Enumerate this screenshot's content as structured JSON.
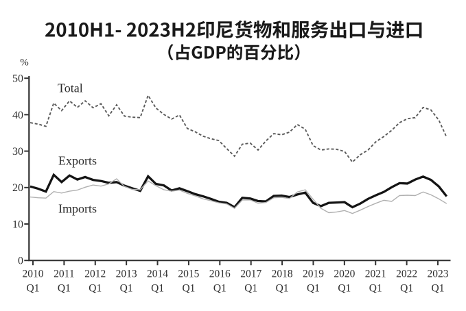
{
  "title": {
    "line1": "2010H1- 2023H2印尼货物和服务出口与进口",
    "line2": "（占GDP的百分比）"
  },
  "colors": {
    "background": "#ffffff",
    "title": "#1a1a1a",
    "axis": "#333333",
    "tick_label": "#2e2e2e",
    "series_label": "#2b2b2b",
    "total_line": "#5a5a5a",
    "exports_line": "#141414",
    "imports_line": "#b0b0b0"
  },
  "chart_data": {
    "type": "line",
    "title": "2010H1- 2023H2印尼货物和服务出口与进口（占GDP的百分比）",
    "xlabel": "",
    "ylabel": "%",
    "ylim": [
      0,
      50
    ],
    "yticks": [
      0,
      10,
      20,
      30,
      40,
      50
    ],
    "x_tick_years": [
      "2010",
      "2011",
      "2012",
      "2013",
      "2014",
      "2015",
      "2016",
      "2017",
      "2018",
      "2019",
      "2020",
      "2021",
      "2022",
      "2023"
    ],
    "x_tick_quarter": "Q1",
    "x": [
      "2010Q1",
      "2010Q2",
      "2010Q3",
      "2010Q4",
      "2011Q1",
      "2011Q2",
      "2011Q3",
      "2011Q4",
      "2012Q1",
      "2012Q2",
      "2012Q3",
      "2012Q4",
      "2013Q1",
      "2013Q2",
      "2013Q3",
      "2013Q4",
      "2014Q1",
      "2014Q2",
      "2014Q3",
      "2014Q4",
      "2015Q1",
      "2015Q2",
      "2015Q3",
      "2015Q4",
      "2016Q1",
      "2016Q2",
      "2016Q3",
      "2016Q4",
      "2017Q1",
      "2017Q2",
      "2017Q3",
      "2017Q4",
      "2018Q1",
      "2018Q2",
      "2018Q3",
      "2018Q4",
      "2019Q1",
      "2019Q2",
      "2019Q3",
      "2019Q4",
      "2020Q1",
      "2020Q2",
      "2020Q3",
      "2020Q4",
      "2021Q1",
      "2021Q2",
      "2021Q3",
      "2021Q4",
      "2022Q1",
      "2022Q2",
      "2022Q3",
      "2022Q4",
      "2023Q1",
      "2023Q2"
    ],
    "grid": false,
    "legend_position": "inline-labels",
    "series": [
      {
        "name": "Total",
        "style": "dashed",
        "values": [
          37.8,
          37.4,
          36.8,
          43.2,
          41.1,
          43.8,
          42.0,
          43.8,
          41.9,
          43.0,
          39.7,
          42.7,
          39.6,
          39.3,
          39.2,
          45.3,
          41.8,
          40.1,
          38.8,
          39.9,
          36.2,
          35.3,
          34.1,
          33.4,
          32.9,
          30.7,
          28.6,
          31.9,
          32.2,
          30.3,
          32.8,
          34.8,
          34.5,
          35.2,
          37.3,
          36.0,
          31.5,
          30.3,
          30.6,
          30.5,
          29.9,
          27.0,
          29.0,
          30.3,
          32.6,
          34.0,
          35.7,
          37.8,
          38.9,
          39.2,
          42.0,
          41.3,
          38.5,
          33.8
        ]
      },
      {
        "name": "Exports",
        "style": "solid-thick",
        "values": [
          20.3,
          19.7,
          18.9,
          23.5,
          21.5,
          23.3,
          22.2,
          22.9,
          22.1,
          21.8,
          21.3,
          21.5,
          20.5,
          19.8,
          19.1,
          23.1,
          21.0,
          20.6,
          19.2,
          19.8,
          19.0,
          18.2,
          17.6,
          16.9,
          16.1,
          15.8,
          14.6,
          17.2,
          17.0,
          16.3,
          16.2,
          17.7,
          17.8,
          17.4,
          18.1,
          18.6,
          15.8,
          14.9,
          15.8,
          15.9,
          16.0,
          14.6,
          15.6,
          16.9,
          17.9,
          18.8,
          20.1,
          21.2,
          21.1,
          22.2,
          23.0,
          22.1,
          20.3,
          17.6
        ]
      },
      {
        "name": "Imports",
        "style": "solid-thin",
        "values": [
          17.4,
          17.2,
          17.1,
          18.9,
          18.5,
          19.0,
          19.3,
          20.1,
          20.7,
          20.4,
          21.0,
          22.4,
          20.3,
          19.5,
          19.4,
          21.8,
          20.5,
          19.4,
          19.0,
          19.3,
          18.4,
          17.7,
          16.9,
          16.4,
          15.8,
          15.5,
          14.3,
          16.6,
          16.6,
          15.7,
          15.9,
          17.2,
          17.3,
          17.0,
          18.8,
          19.4,
          16.8,
          14.3,
          13.1,
          13.3,
          13.7,
          12.9,
          13.8,
          14.8,
          15.7,
          16.5,
          16.2,
          17.8,
          17.9,
          17.8,
          18.8,
          18.0,
          16.9,
          15.6
        ]
      }
    ]
  }
}
